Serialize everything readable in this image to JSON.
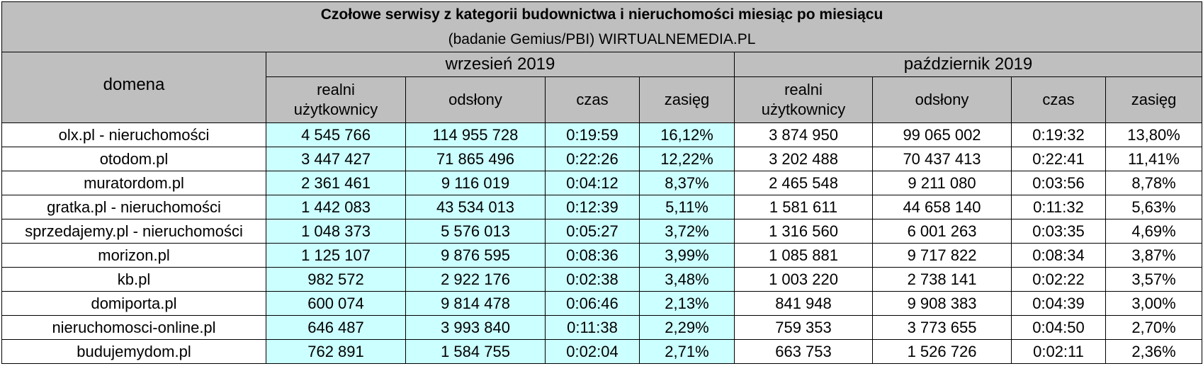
{
  "title": "Czołowe serwisy z kategorii budownictwa i nieruchomości miesiąc po miesiącu",
  "subtitle": "(badanie Gemius/PBI) WIRTUALNEMEDIA.PL",
  "domain_header": "domena",
  "months": [
    "wrzesień 2019",
    "październik 2019"
  ],
  "columns": {
    "users_line1": "realni",
    "users_line2": "użytkownicy",
    "pageviews": "odsłony",
    "time": "czas",
    "reach": "zasięg"
  },
  "rows": [
    {
      "domain": "olx.pl - nieruchomości",
      "sep": {
        "users": "4 545 766",
        "pageviews": "114 955 728",
        "time": "0:19:59",
        "reach": "16,12%"
      },
      "oct": {
        "users": "3 874 950",
        "pageviews": "99 065 002",
        "time": "0:19:32",
        "reach": "13,80%"
      }
    },
    {
      "domain": "otodom.pl",
      "sep": {
        "users": "3 447 427",
        "pageviews": "71 865 496",
        "time": "0:22:26",
        "reach": "12,22%"
      },
      "oct": {
        "users": "3 202 488",
        "pageviews": "70 437 413",
        "time": "0:22:41",
        "reach": "11,41%"
      }
    },
    {
      "domain": "muratordom.pl",
      "sep": {
        "users": "2 361 461",
        "pageviews": "9 116 019",
        "time": "0:04:12",
        "reach": "8,37%"
      },
      "oct": {
        "users": "2 465 548",
        "pageviews": "9 211 080",
        "time": "0:03:56",
        "reach": "8,78%"
      }
    },
    {
      "domain": "gratka.pl - nieruchomości",
      "sep": {
        "users": "1 442 083",
        "pageviews": "43 534 013",
        "time": "0:12:39",
        "reach": "5,11%"
      },
      "oct": {
        "users": "1 581 611",
        "pageviews": "44 658 140",
        "time": "0:11:32",
        "reach": "5,63%"
      }
    },
    {
      "domain": "sprzedajemy.pl - nieruchomości",
      "sep": {
        "users": "1 048 373",
        "pageviews": "5 576 013",
        "time": "0:05:27",
        "reach": "3,72%"
      },
      "oct": {
        "users": "1 316 560",
        "pageviews": "6 001 263",
        "time": "0:03:35",
        "reach": "4,69%"
      }
    },
    {
      "domain": "morizon.pl",
      "sep": {
        "users": "1 125 107",
        "pageviews": "9 876 595",
        "time": "0:08:36",
        "reach": "3,99%"
      },
      "oct": {
        "users": "1 085 881",
        "pageviews": "9 717 822",
        "time": "0:08:34",
        "reach": "3,87%"
      }
    },
    {
      "domain": "kb.pl",
      "sep": {
        "users": "982 572",
        "pageviews": "2 922 176",
        "time": "0:02:38",
        "reach": "3,48%"
      },
      "oct": {
        "users": "1 003 220",
        "pageviews": "2 738 141",
        "time": "0:02:22",
        "reach": "3,57%"
      }
    },
    {
      "domain": "domiporta.pl",
      "sep": {
        "users": "600 074",
        "pageviews": "9 814 478",
        "time": "0:06:46",
        "reach": "2,13%"
      },
      "oct": {
        "users": "841 948",
        "pageviews": "9 908 383",
        "time": "0:04:39",
        "reach": "3,00%"
      }
    },
    {
      "domain": "nieruchomosci-online.pl",
      "sep": {
        "users": "646 487",
        "pageviews": "3 993 840",
        "time": "0:11:38",
        "reach": "2,29%"
      },
      "oct": {
        "users": "759 353",
        "pageviews": "3 773 655",
        "time": "0:04:50",
        "reach": "2,70%"
      }
    },
    {
      "domain": "budujemydom.pl",
      "sep": {
        "users": "762 891",
        "pageviews": "1 584 755",
        "time": "0:02:04",
        "reach": "2,71%"
      },
      "oct": {
        "users": "663 753",
        "pageviews": "1 526 726",
        "time": "0:02:11",
        "reach": "2,36%"
      }
    }
  ]
}
